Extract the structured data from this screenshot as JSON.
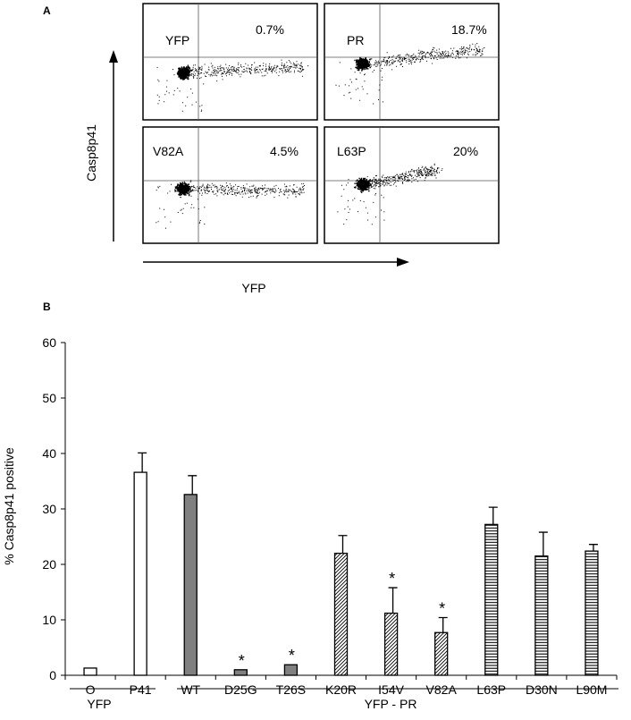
{
  "panel_a": {
    "label": "A",
    "y_axis_label": "Casp8p41",
    "x_axis_label": "YFP",
    "plots": [
      {
        "name": "YFP",
        "percent": "0.7%"
      },
      {
        "name": "PR",
        "percent": "18.7%"
      },
      {
        "name": "V82A",
        "percent": "4.5%"
      },
      {
        "name": "L63P",
        "percent": "20%"
      }
    ]
  },
  "panel_b": {
    "label": "B",
    "groups": [
      {
        "label": "YFP",
        "span": [
          0,
          1
        ]
      },
      {
        "label": "YFP - PR",
        "span": [
          2,
          10
        ]
      }
    ]
  },
  "chart_data": {
    "type": "bar",
    "title": "",
    "xlabel": "",
    "ylabel": "% Casp8p41 positive",
    "ylim": [
      0,
      60
    ],
    "yticks": [
      0,
      10,
      20,
      30,
      40,
      50,
      60
    ],
    "categories": [
      "O",
      "P41",
      "WT",
      "D25G",
      "T26S",
      "K20R",
      "I54V",
      "V82A",
      "L63P",
      "D30N",
      "L90M"
    ],
    "values": [
      1.3,
      36.6,
      32.6,
      1.0,
      1.9,
      22.0,
      11.2,
      7.7,
      27.2,
      21.5,
      22.4
    ],
    "errors": [
      0,
      3.5,
      3.4,
      0,
      0,
      3.2,
      4.6,
      2.7,
      3.1,
      4.3,
      1.2
    ],
    "significant": [
      false,
      false,
      false,
      true,
      true,
      false,
      true,
      true,
      false,
      false,
      false
    ],
    "significance_marker": "*",
    "fills": [
      "open",
      "open",
      "solid",
      "solid",
      "solid",
      "diagonal",
      "diagonal",
      "diagonal",
      "horizontal",
      "horizontal",
      "horizontal"
    ],
    "colors": {
      "solid": "#808080",
      "outline": "#000000",
      "pattern": "#000000",
      "background": "#ffffff"
    }
  }
}
